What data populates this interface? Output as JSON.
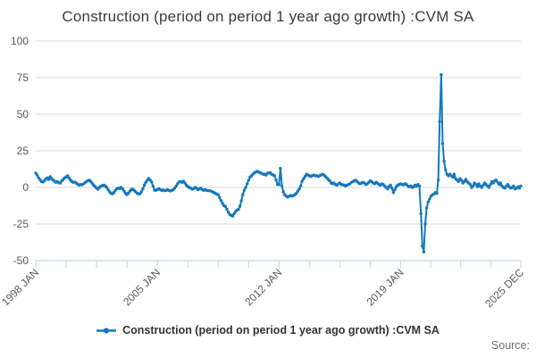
{
  "title": "Construction (period on period 1 year ago growth) :CVM SA",
  "legend": {
    "label": "Construction (period on period 1 year ago growth) :CVM SA"
  },
  "source_label": "Source:",
  "colors": {
    "line": "#1478bd",
    "grid": "#d9d9d9",
    "axis": "#c2cce0",
    "tick_text": "#5b5b5b",
    "title_text": "#3b3b3b",
    "source_text": "#6e6e6e"
  },
  "chart_data": {
    "type": "line",
    "title": "Construction (period on period 1 year ago growth) :CVM SA",
    "series_name": "Construction (period on period 1 year ago growth) :CVM SA",
    "frequency": "monthly",
    "x_start": "1998 JAN",
    "x_end": "2025 DEC",
    "ylim": [
      -50,
      100
    ],
    "yticks": [
      100,
      75,
      50,
      25,
      0,
      -25,
      -50
    ],
    "grid": "horizontal",
    "legend_position": "bottom",
    "x_labeled_ticks": [
      {
        "label": "1998 JAN",
        "m": 0
      },
      {
        "label": "2005 JAN",
        "m": 84
      },
      {
        "label": "2012 JAN",
        "m": 168
      },
      {
        "label": "2019 JAN",
        "m": 252
      },
      {
        "label": "2025 DEC",
        "m": 335
      }
    ],
    "minor_ticks_per_interval": 4,
    "values": [
      9.8,
      8.5,
      6.5,
      5.2,
      4.0,
      3.7,
      4.5,
      5.8,
      6.5,
      5.5,
      7.3,
      6.0,
      5.0,
      4.2,
      3.5,
      4.0,
      3.2,
      3.0,
      4.5,
      5.5,
      6.5,
      7.2,
      8.0,
      6.5,
      5.0,
      4.0,
      3.5,
      3.7,
      3.0,
      2.2,
      1.5,
      2.0,
      1.8,
      2.5,
      3.2,
      4.0,
      4.5,
      4.9,
      4.0,
      2.8,
      1.5,
      0.5,
      -0.5,
      -1.2,
      0.0,
      0.8,
      1.2,
      1.5,
      1.0,
      0.0,
      -1.5,
      -3.0,
      -4.0,
      -4.3,
      -3.5,
      -2.0,
      -1.0,
      -0.5,
      -0.8,
      0.0,
      -1.0,
      -2.5,
      -4.0,
      -4.9,
      -4.0,
      -2.5,
      -1.5,
      -1.2,
      -2.0,
      -3.0,
      -4.0,
      -4.3,
      -4.3,
      -3.0,
      -1.0,
      1.5,
      3.5,
      5.0,
      6.1,
      5.0,
      3.7,
      1.0,
      -1.8,
      -2.0,
      -1.5,
      -1.0,
      -1.5,
      -2.0,
      -1.8,
      -2.2,
      -2.0,
      -1.5,
      -2.0,
      -2.4,
      -2.0,
      -1.5,
      -0.5,
      1.0,
      2.5,
      3.7,
      4.0,
      3.5,
      4.3,
      3.0,
      1.5,
      0.6,
      0.0,
      -0.5,
      -1.2,
      -0.8,
      0.0,
      -0.5,
      -1.5,
      -1.0,
      -0.5,
      -1.5,
      -2.0,
      -1.5,
      -2.0,
      -2.2,
      -2.2,
      -2.5,
      -3.0,
      -3.5,
      -4.0,
      -4.5,
      -5.0,
      -7.0,
      -9.0,
      -11.0,
      -12.5,
      -13.0,
      -15.0,
      -17.0,
      -18.5,
      -19.0,
      -19.5,
      -18.0,
      -16.5,
      -15.5,
      -15.0,
      -13.0,
      -9.0,
      -5.0,
      -2.0,
      0.0,
      2.5,
      5.0,
      7.0,
      8.0,
      9.0,
      10.0,
      10.5,
      11.0,
      10.5,
      10.0,
      9.5,
      9.0,
      9.0,
      8.5,
      9.5,
      10.0,
      10.0,
      9.0,
      8.5,
      8.0,
      5.0,
      2.0,
      2.0,
      13.0,
      1.0,
      -3.0,
      -5.0,
      -6.0,
      -6.5,
      -6.0,
      -5.5,
      -6.0,
      -5.5,
      -5.0,
      -4.0,
      -2.5,
      -1.0,
      1.0,
      4.3,
      6.0,
      7.5,
      9.0,
      8.5,
      8.0,
      7.5,
      8.0,
      8.5,
      8.0,
      8.0,
      7.5,
      8.0,
      8.5,
      9.0,
      8.5,
      7.5,
      6.5,
      5.5,
      4.5,
      3.0,
      2.5,
      3.0,
      2.0,
      1.5,
      2.5,
      3.0,
      2.0,
      1.8,
      1.5,
      1.0,
      1.5,
      2.0,
      2.5,
      3.5,
      4.0,
      4.5,
      4.9,
      4.0,
      3.0,
      2.5,
      3.0,
      3.5,
      3.0,
      2.0,
      2.5,
      3.5,
      4.5,
      4.0,
      3.0,
      2.5,
      3.5,
      3.0,
      2.0,
      1.5,
      2.5,
      2.0,
      1.0,
      0.0,
      -1.0,
      0.5,
      1.5,
      -0.5,
      -3.5,
      -1.5,
      0.5,
      1.5,
      2.0,
      2.5,
      2.0,
      1.8,
      2.5,
      2.0,
      1.0,
      0.5,
      1.0,
      0.0,
      0.5,
      1.5,
      1.0,
      2.0,
      1.0,
      -18.0,
      -40.0,
      -44.0,
      -25.0,
      -14.0,
      -10.0,
      -8.0,
      -6.0,
      -5.0,
      -4.5,
      -3.5,
      -4.0,
      5.0,
      45.0,
      77.0,
      30.0,
      18.0,
      12.0,
      9.0,
      8.0,
      9.0,
      8.0,
      7.0,
      9.0,
      6.0,
      5.0,
      4.0,
      6.0,
      5.0,
      3.0,
      4.0,
      5.5,
      4.0,
      3.0,
      2.0,
      0.0,
      1.0,
      3.0,
      2.0,
      0.5,
      2.5,
      1.0,
      0.0,
      1.5,
      3.0,
      2.0,
      1.0,
      0.0,
      2.0,
      4.0,
      3.0,
      4.5,
      5.0,
      3.5,
      2.0,
      3.0,
      1.0,
      0.0,
      -0.5,
      1.0,
      2.0,
      0.5,
      -0.5,
      0.0,
      1.0,
      -1.0,
      -0.5,
      0.5,
      -0.5,
      1.0
    ]
  }
}
